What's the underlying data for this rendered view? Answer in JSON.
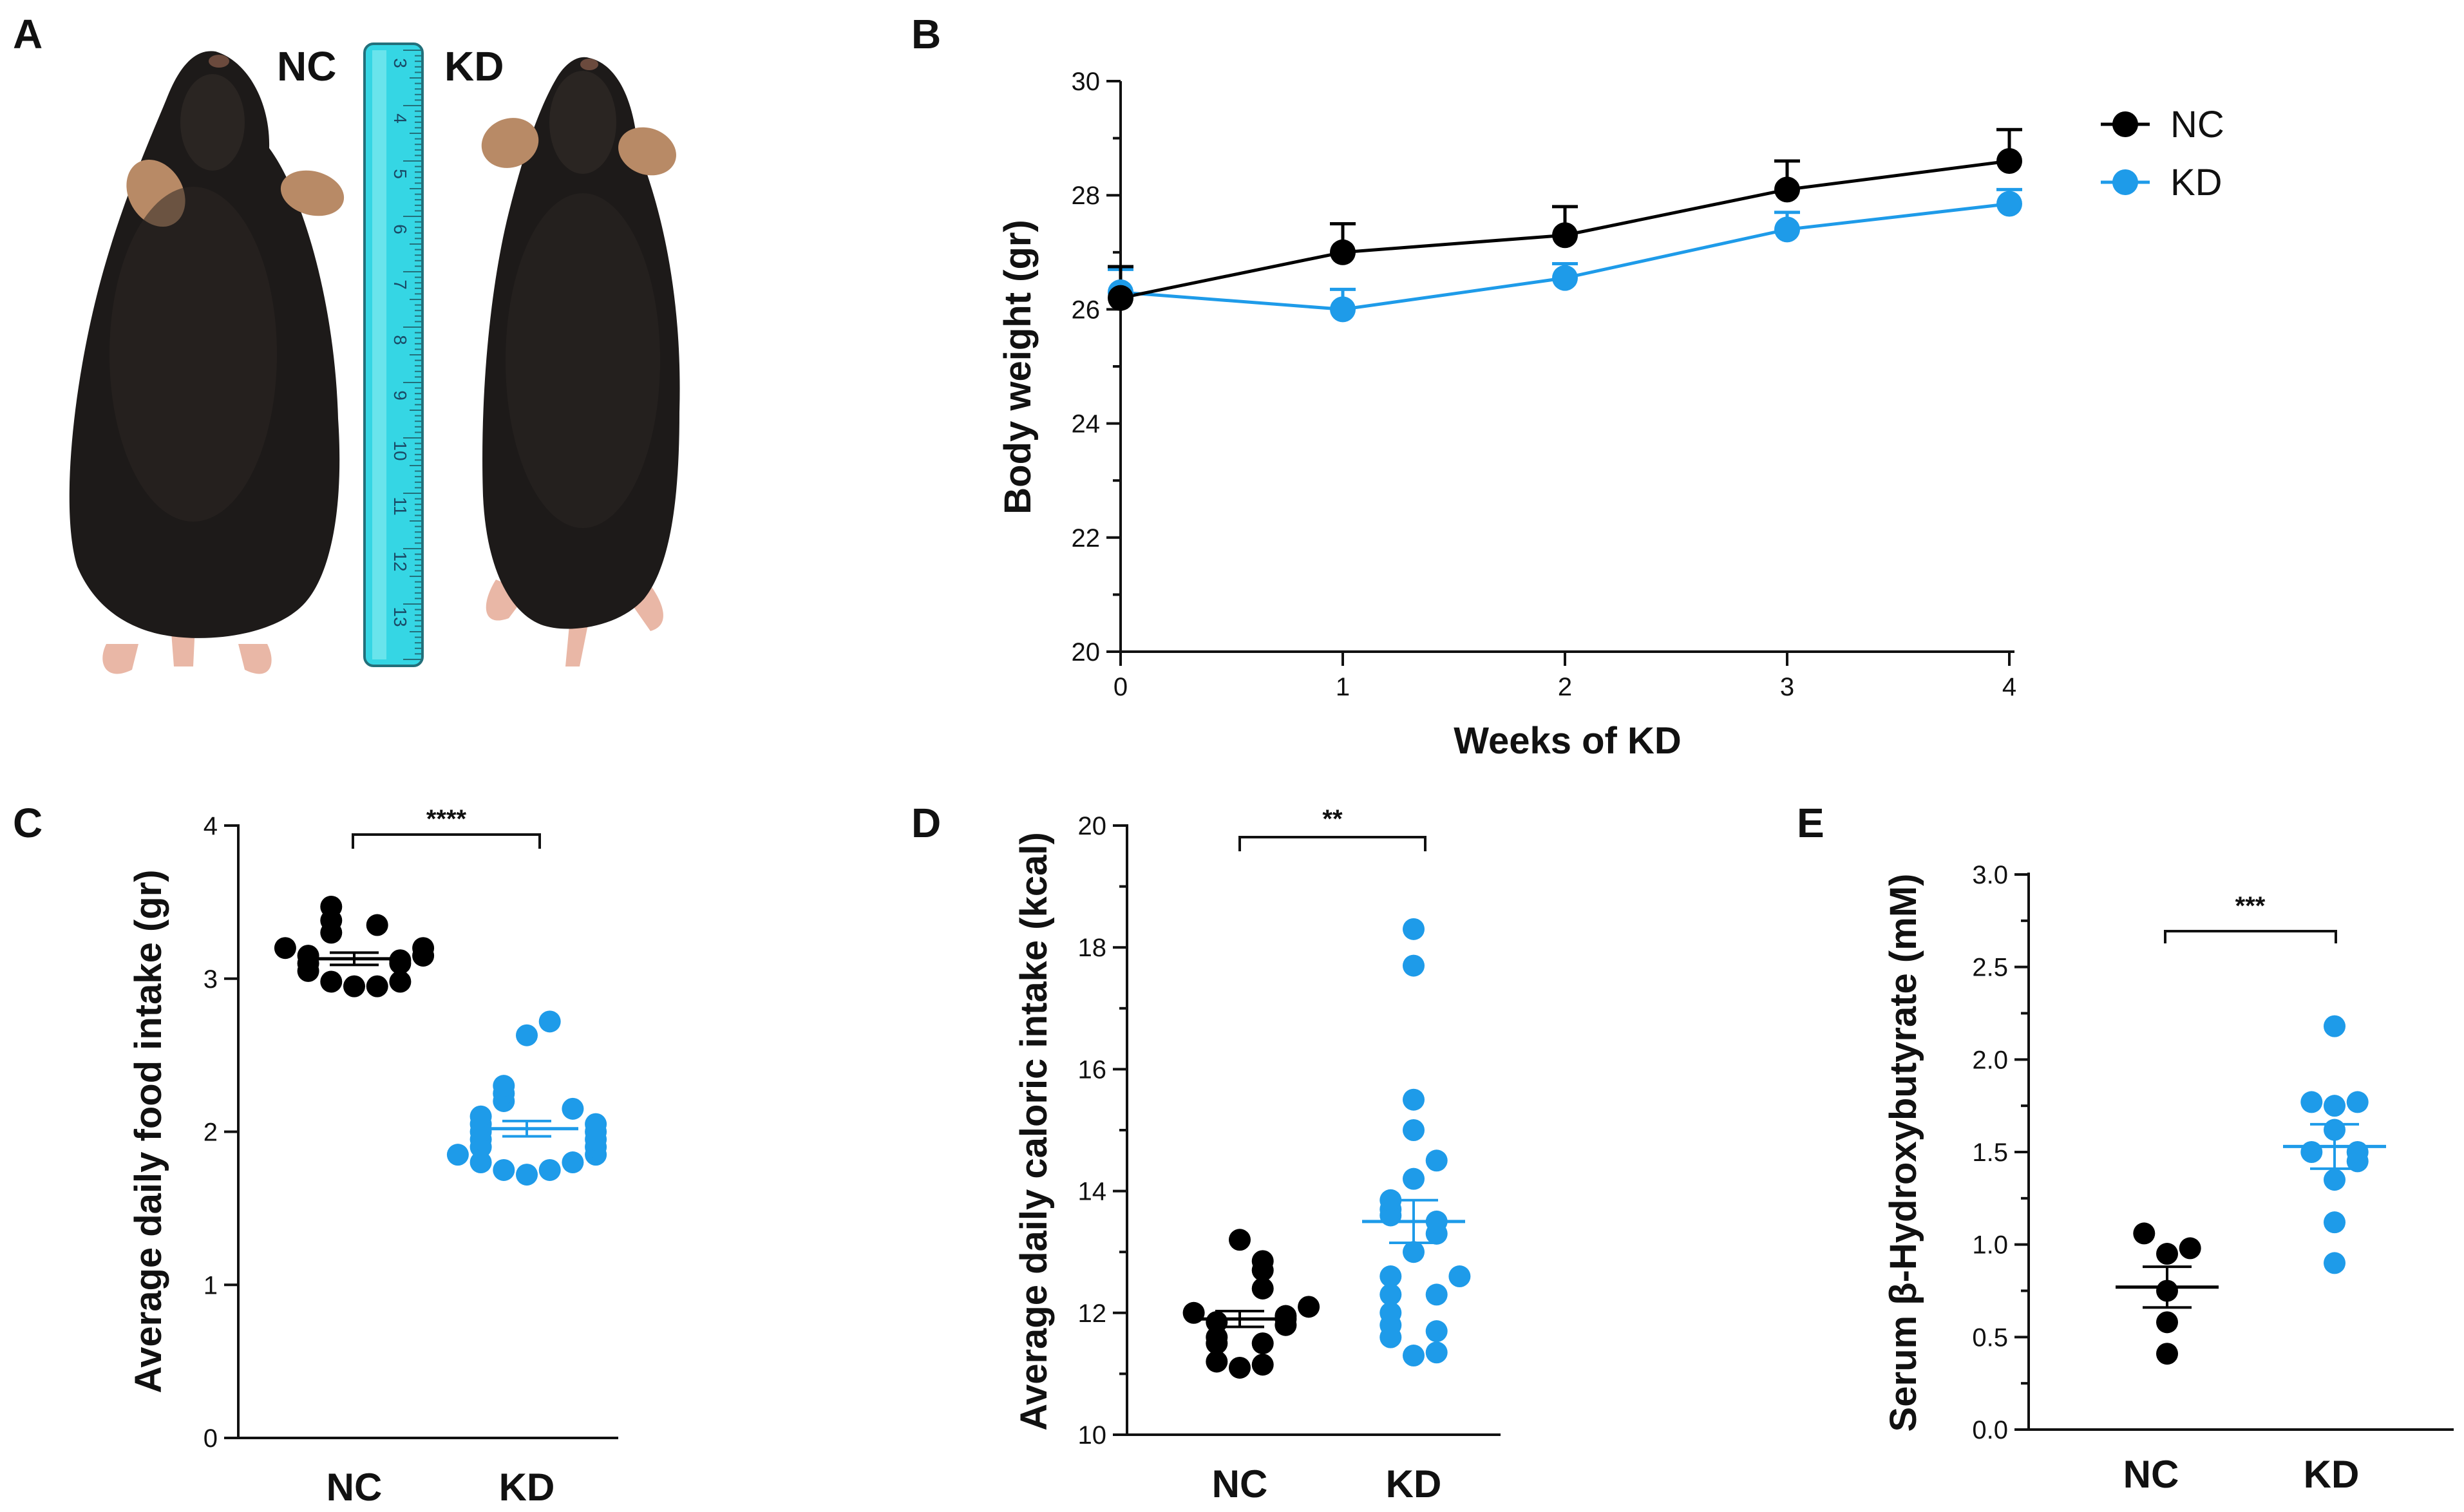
{
  "colors": {
    "nc": "#000000",
    "kd": "#1e9be9",
    "ruler": "#35d6e4",
    "fur": "#1d1a19"
  },
  "panel_a": {
    "letter": "A",
    "nc_label": "NC",
    "kd_label": "KD",
    "ruler_numbers": [
      "3",
      "4",
      "5",
      "6",
      "7",
      "8",
      "9",
      "10",
      "11",
      "12",
      "13"
    ]
  },
  "chart_data": [
    {
      "panel": "B",
      "type": "line",
      "xlabel": "Weeks of KD",
      "ylabel": "Body weight (gr)",
      "x": [
        0,
        1,
        2,
        3,
        4
      ],
      "xticks": [
        "0",
        "1",
        "2",
        "3",
        "4"
      ],
      "ylim": [
        20,
        30
      ],
      "yticks": [
        "20",
        "22",
        "24",
        "26",
        "28",
        "30"
      ],
      "legend": "top-right",
      "series": [
        {
          "name": "NC",
          "color": "#000000",
          "values": [
            26.2,
            27.0,
            27.3,
            28.1,
            28.6
          ],
          "sem": [
            0.55,
            0.5,
            0.5,
            0.5,
            0.55
          ]
        },
        {
          "name": "KD",
          "color": "#1e9be9",
          "values": [
            26.3,
            26.0,
            26.55,
            27.4,
            27.85
          ],
          "sem": [
            0.4,
            0.35,
            0.25,
            0.3,
            0.25
          ]
        }
      ]
    },
    {
      "panel": "C",
      "type": "scatter",
      "ylabel": "Average daily food intake (gr)",
      "categories": [
        "NC",
        "KD"
      ],
      "ylim": [
        0,
        4
      ],
      "yticks": [
        "0",
        "1",
        "2",
        "3",
        "4"
      ],
      "significance": "****",
      "series": [
        {
          "name": "NC",
          "color": "#000000",
          "mean": 3.13,
          "sem": 0.04,
          "values": [
            3.47,
            3.38,
            3.35,
            3.3,
            3.2,
            3.2,
            3.15,
            3.15,
            3.12,
            3.1,
            3.1,
            3.05,
            2.98,
            2.98,
            2.95,
            2.95
          ]
        },
        {
          "name": "KD",
          "color": "#1e9be9",
          "mean": 2.02,
          "sem": 0.05,
          "values": [
            2.72,
            2.63,
            2.3,
            2.25,
            2.2,
            2.15,
            2.1,
            2.05,
            2.05,
            2.0,
            2.0,
            1.95,
            1.95,
            1.9,
            1.9,
            1.85,
            1.85,
            1.8,
            1.8,
            1.75,
            1.75,
            1.72
          ]
        }
      ]
    },
    {
      "panel": "D",
      "type": "scatter",
      "ylabel": "Average daily caloric intake (kcal)",
      "categories": [
        "NC",
        "KD"
      ],
      "ylim": [
        10,
        20
      ],
      "yticks": [
        "10",
        "12",
        "14",
        "16",
        "18",
        "20"
      ],
      "significance": "**",
      "series": [
        {
          "name": "NC",
          "color": "#000000",
          "mean": 11.9,
          "sem": 0.13,
          "values": [
            13.2,
            12.85,
            12.7,
            12.4,
            12.1,
            12.0,
            11.95,
            11.9,
            11.85,
            11.8,
            11.6,
            11.5,
            11.5,
            11.2,
            11.15,
            11.1
          ]
        },
        {
          "name": "KD",
          "color": "#1e9be9",
          "mean": 13.5,
          "sem": 0.35,
          "values": [
            18.3,
            17.7,
            15.5,
            15.0,
            14.5,
            14.2,
            13.85,
            13.7,
            13.6,
            13.5,
            13.3,
            13.0,
            12.6,
            12.6,
            12.3,
            12.3,
            12.0,
            11.8,
            11.7,
            11.6,
            11.35,
            11.3
          ]
        }
      ]
    },
    {
      "panel": "E",
      "type": "scatter",
      "ylabel": "Serum β-Hydroxybutyrate (mM)",
      "categories": [
        "NC",
        "KD"
      ],
      "ylim": [
        0,
        3
      ],
      "yticks": [
        "0.0",
        "0.5",
        "1.0",
        "1.5",
        "2.0",
        "2.5",
        "3.0"
      ],
      "significance": "***",
      "series": [
        {
          "name": "NC",
          "color": "#000000",
          "mean": 0.77,
          "sem": 0.11,
          "values": [
            1.06,
            0.98,
            0.95,
            0.75,
            0.58,
            0.41
          ]
        },
        {
          "name": "KD",
          "color": "#1e9be9",
          "mean": 1.53,
          "sem": 0.12,
          "values": [
            2.18,
            1.77,
            1.77,
            1.75,
            1.62,
            1.5,
            1.5,
            1.45,
            1.35,
            1.12,
            0.9
          ]
        }
      ]
    }
  ]
}
